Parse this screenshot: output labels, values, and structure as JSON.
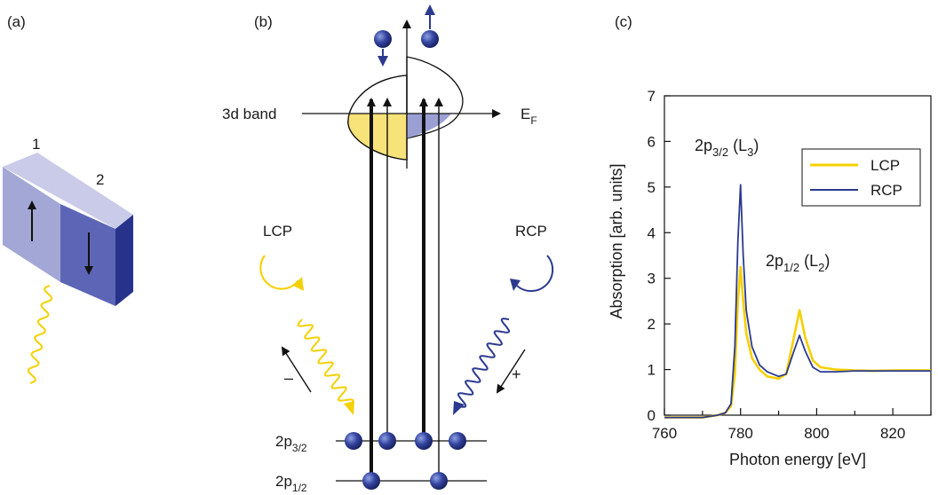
{
  "panels": {
    "a": {
      "label": "(a)",
      "domain1": "1",
      "domain2": "2"
    },
    "b": {
      "label": "(b)",
      "band_label": "3d band",
      "fermi_label": "E",
      "fermi_sub": "F",
      "lcp_label": "LCP",
      "rcp_label": "RCP",
      "minus_sign": "–",
      "plus_sign": "+",
      "level1_main": "2p",
      "level1_sub": "3/2",
      "level2_main": "2p",
      "level2_sub": "1/2"
    },
    "c": {
      "label": "(c)",
      "peak1": {
        "main": "2p",
        "sub": "3/2",
        "mid": " (L",
        "edge": "3",
        "close": ")"
      },
      "peak2": {
        "main": "2p",
        "sub": "1/2",
        "mid": " (L",
        "edge": "2",
        "close": ")"
      }
    }
  },
  "colors": {
    "lcp": "#f5d000",
    "rcp": "#2b3a8f",
    "domain_light": "#a9abd6",
    "domain_dark": "#5a63b3",
    "atom": "#2f3b96"
  },
  "chart_data": {
    "type": "line",
    "xlabel": "Photon energy [eV]",
    "ylabel": "Absorption [arb. units]",
    "xlim": [
      760,
      830
    ],
    "ylim": [
      0,
      7
    ],
    "xticks": [
      760,
      780,
      800,
      820
    ],
    "yticks": [
      0,
      1,
      2,
      3,
      4,
      5,
      6,
      7
    ],
    "legend_position": "top-right",
    "series": [
      {
        "name": "LCP",
        "color": "#f5d000",
        "x": [
          759,
          765,
          770,
          774,
          776,
          777.5,
          778.5,
          779.3,
          780,
          780.7,
          781.5,
          783,
          785,
          787,
          790,
          792,
          794,
          795.5,
          797,
          799,
          801,
          805,
          810,
          815,
          820,
          825,
          830
        ],
        "y": [
          -0.05,
          -0.05,
          -0.05,
          0,
          0.05,
          0.2,
          0.9,
          2.5,
          3.25,
          2.5,
          1.8,
          1.25,
          1.0,
          0.85,
          0.8,
          0.9,
          1.7,
          2.3,
          1.7,
          1.2,
          1.05,
          1.0,
          0.98,
          0.97,
          0.98,
          0.98,
          0.98
        ]
      },
      {
        "name": "RCP",
        "color": "#2b3a8f",
        "x": [
          759,
          765,
          770,
          774,
          776,
          777.5,
          778.5,
          779.3,
          780,
          780.7,
          781.5,
          783,
          785,
          787,
          790,
          792,
          794,
          795.5,
          797,
          799,
          801,
          805,
          810,
          815,
          820,
          825,
          830
        ],
        "y": [
          -0.05,
          -0.05,
          -0.05,
          0,
          0.05,
          0.25,
          1.5,
          3.8,
          5.05,
          3.5,
          2.3,
          1.5,
          1.1,
          0.95,
          0.85,
          0.9,
          1.4,
          1.75,
          1.4,
          1.05,
          0.95,
          0.95,
          0.97,
          0.97,
          0.97,
          0.97,
          0.97
        ]
      }
    ]
  }
}
